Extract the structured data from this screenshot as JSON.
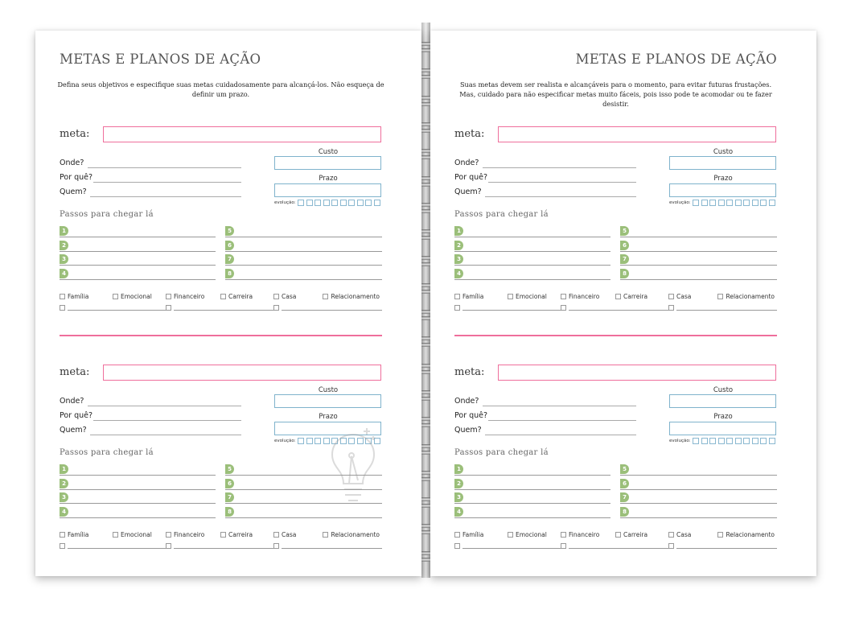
{
  "pages": [
    {
      "title": "METAS E PLANOS DE AÇÃO",
      "description": "Defina seus objetivos e especifique suas metas cuidadosamente para alcançá-los. Não esqueça de definir um prazo."
    },
    {
      "title": "METAS E PLANOS DE AÇÃO",
      "description": "Suas metas devem ser realista e alcançáveis para o momento, para evitar futuras frustações. Mas, cuidado para não especificar metas muito fáceis, pois isso pode te acomodar ou te fazer desistir."
    }
  ],
  "form": {
    "meta_label": "meta:",
    "questions": [
      "Onde?",
      "Por quê?",
      "Quem?"
    ],
    "custo_label": "Custo",
    "prazo_label": "Prazo",
    "evolucao_label": "evolução:",
    "evolucao_boxes": 10,
    "passos_label": "Passos para chegar lá",
    "steps": [
      "1",
      "2",
      "3",
      "4",
      "5",
      "6",
      "7",
      "8"
    ],
    "categories": [
      "Família",
      "Emocional",
      "Financeiro",
      "Carreira",
      "Casa",
      "Relacionamento"
    ]
  },
  "colors": {
    "accent_pink": "#ef6f9c",
    "box_blue": "#7fb3cc",
    "step_green": "#9bbf7a"
  },
  "watermark_icon": "lightbulb-icon"
}
